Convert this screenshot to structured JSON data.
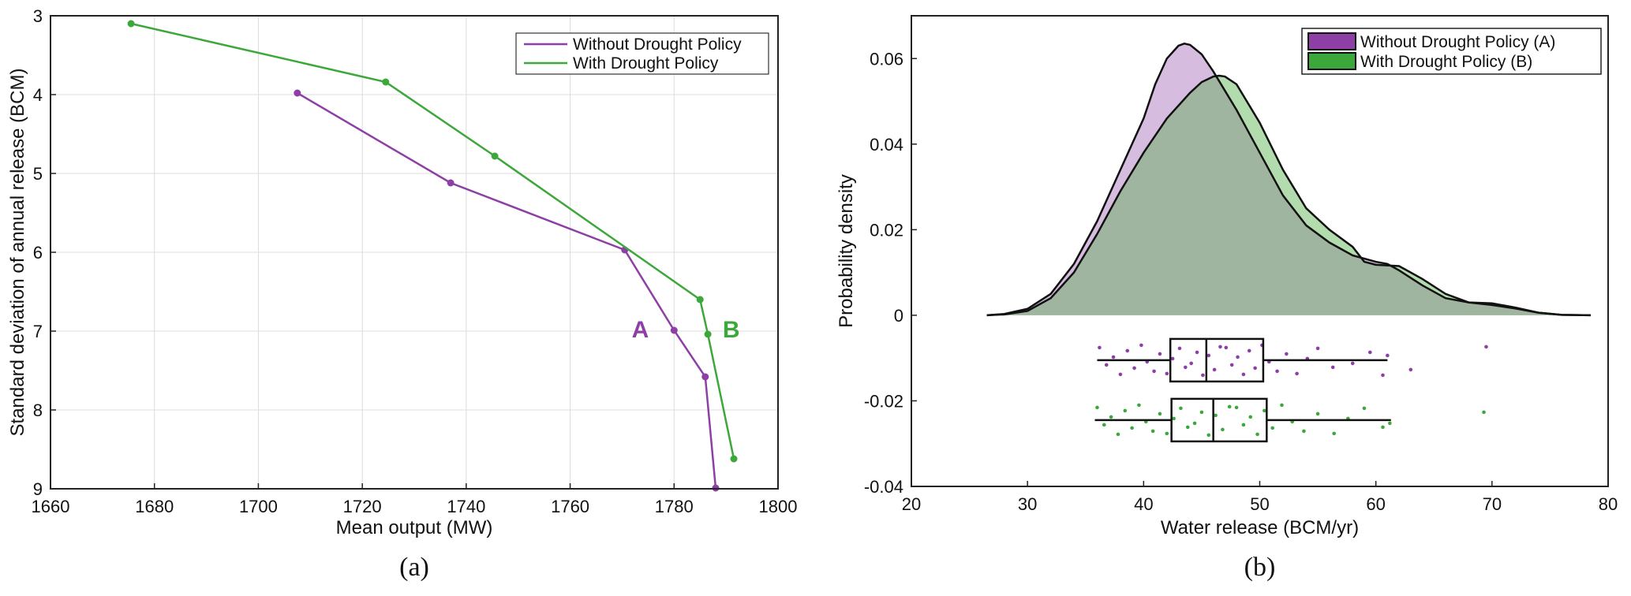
{
  "chart_data": [
    {
      "type": "line",
      "panel_caption": "(a)",
      "xlabel": "Mean output (MW)",
      "ylabel": "Standard deviation of annual release (BCM)",
      "xlim": [
        1660,
        1800
      ],
      "ylim": [
        3,
        9
      ],
      "y_inverted": true,
      "xticks": [
        1660,
        1680,
        1700,
        1720,
        1740,
        1760,
        1780,
        1800
      ],
      "yticks": [
        3,
        4,
        5,
        6,
        7,
        8,
        9
      ],
      "grid": true,
      "legend_position": "top-right",
      "series": [
        {
          "name": "Without Drought Policy",
          "color": "#8e3fa6",
          "x": [
            1707.5,
            1737,
            1770.5,
            1780,
            1786,
            1788
          ],
          "y": [
            3.98,
            5.12,
            5.97,
            6.99,
            7.58,
            8.99
          ]
        },
        {
          "name": "With Drought Policy",
          "color": "#3ca73a",
          "x": [
            1675.5,
            1724.5,
            1745.5,
            1785,
            1786.5,
            1791.5
          ],
          "y": [
            3.1,
            3.84,
            4.78,
            6.6,
            7.04,
            8.62
          ]
        }
      ],
      "annotations": [
        {
          "text": "A",
          "x": 1773.5,
          "y": 6.97,
          "color": "#8e3fa6"
        },
        {
          "text": "B",
          "x": 1791,
          "y": 6.97,
          "color": "#3ca73a"
        }
      ]
    },
    {
      "type": "area",
      "panel_caption": "(b)",
      "xlabel": "Water release (BCM/yr)",
      "ylabel": "Probability density",
      "xlim": [
        20,
        80
      ],
      "ylim": [
        -0.04,
        0.07
      ],
      "xticks": [
        20,
        30,
        40,
        50,
        60,
        70,
        80
      ],
      "yticks": [
        -0.04,
        -0.02,
        0,
        0.02,
        0.04,
        0.06
      ],
      "ytick_labels": [
        "-0.04",
        "-0.02",
        "0",
        "0.02",
        "0.04",
        "0.06"
      ],
      "grid": false,
      "legend_position": "top-right",
      "series": [
        {
          "name": "Without Drought Policy (A)",
          "color": "#8e3fa6",
          "fill": "#d6bde0",
          "x": [
            26.5,
            28,
            30,
            32,
            34,
            36,
            38,
            40,
            41,
            42,
            43,
            43.5,
            44,
            45,
            46,
            48,
            50,
            52,
            54,
            56,
            58,
            60,
            61,
            62,
            64,
            66,
            68,
            70,
            72,
            74,
            76,
            78.5
          ],
          "y": [
            0,
            0.0003,
            0.0015,
            0.005,
            0.012,
            0.022,
            0.034,
            0.046,
            0.054,
            0.06,
            0.063,
            0.0635,
            0.0632,
            0.061,
            0.057,
            0.048,
            0.038,
            0.028,
            0.021,
            0.017,
            0.014,
            0.0125,
            0.012,
            0.0105,
            0.007,
            0.004,
            0.003,
            0.0028,
            0.0018,
            0.0006,
            0.0001,
            0
          ]
        },
        {
          "name": "With Drought Policy (B)",
          "color": "#3ca73a",
          "fill": "#b3dcae",
          "x": [
            26.5,
            28,
            30,
            32,
            34,
            36,
            38,
            40,
            42,
            44,
            45,
            46,
            46.5,
            47,
            48,
            50,
            52,
            54,
            56,
            58,
            59,
            60,
            62,
            64,
            66,
            68,
            70,
            72,
            74,
            76,
            78.5
          ],
          "y": [
            0,
            0.0002,
            0.001,
            0.004,
            0.01,
            0.019,
            0.029,
            0.038,
            0.046,
            0.052,
            0.0545,
            0.0558,
            0.056,
            0.0558,
            0.054,
            0.045,
            0.034,
            0.025,
            0.02,
            0.016,
            0.0125,
            0.0118,
            0.0115,
            0.0085,
            0.005,
            0.003,
            0.0024,
            0.0016,
            0.0006,
            0.0001,
            0
          ]
        }
      ],
      "overlap_fill": "#9fb59f",
      "boxplots": [
        {
          "name": "Without Drought Policy (A)",
          "color": "#8e3fa6",
          "y_center": -0.0105,
          "whisker_low": 36,
          "q1": 42.3,
          "median": 45.4,
          "q3": 50.3,
          "whisker_high": 61,
          "outliers": [
            63,
            69.5
          ],
          "points": [
            36.2,
            36.8,
            37.4,
            38,
            38.6,
            39.2,
            39.8,
            40.3,
            40.9,
            41.4,
            42,
            42.5,
            43.1,
            43.6,
            44.1,
            44.6,
            45.1,
            45.6,
            46.1,
            46.6,
            47.1,
            47.6,
            48.1,
            48.6,
            49.1,
            49.6,
            50.2,
            50.8,
            51.5,
            52.3,
            53.2,
            54.1,
            55,
            56.3,
            58,
            59.5,
            60.6,
            61,
            63,
            69.5
          ]
        },
        {
          "name": "With Drought Policy (B)",
          "color": "#3ca73a",
          "y_center": -0.0245,
          "whisker_low": 35.8,
          "q1": 42.4,
          "median": 46,
          "q3": 50.6,
          "whisker_high": 61.3,
          "outliers": [
            69.3
          ],
          "points": [
            36,
            36.6,
            37.2,
            37.8,
            38.4,
            39,
            39.6,
            40.2,
            40.8,
            41.4,
            42,
            42.6,
            43.2,
            43.8,
            44.4,
            45,
            45.6,
            46.2,
            46.8,
            47.4,
            48,
            48.6,
            49.2,
            49.8,
            50.4,
            51.1,
            51.9,
            52.8,
            53.8,
            55,
            56.4,
            57.6,
            59,
            60.6,
            61.2,
            69.3
          ]
        }
      ]
    }
  ]
}
